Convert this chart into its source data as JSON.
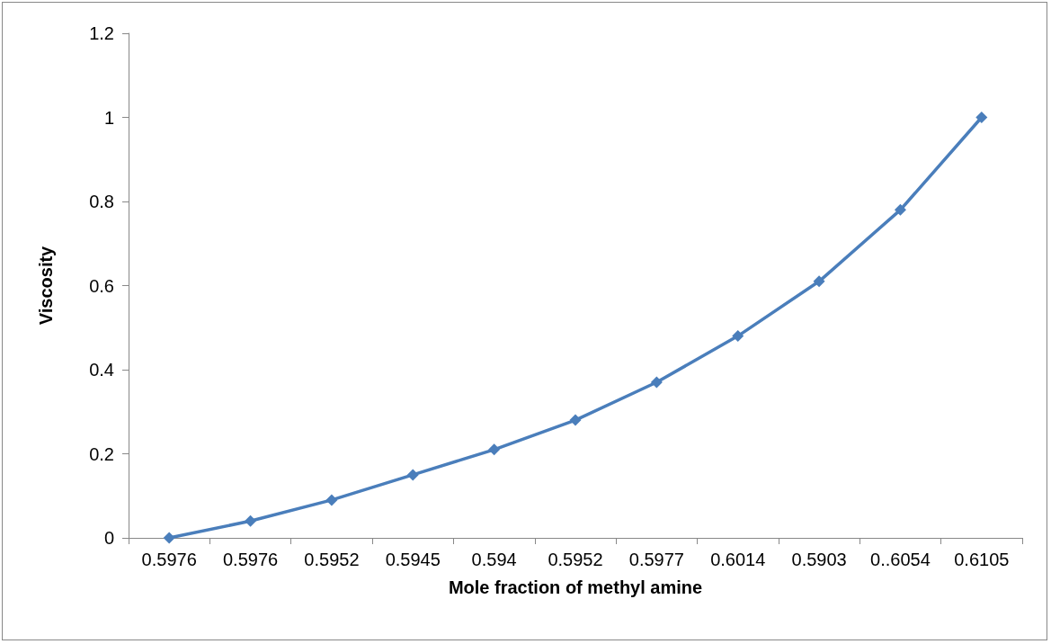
{
  "chart_data": {
    "type": "line",
    "xlabel": "Mole fraction of methyl amine",
    "ylabel": "Viscosity",
    "categories": [
      "0.5976",
      "0.5976",
      "0.5952",
      "0.5945",
      "0.594",
      "0.5952",
      "0.5977",
      "0.6014",
      "0.5903",
      "0..6054",
      "0.6105"
    ],
    "series": [
      {
        "color": "#4a7ebb",
        "values": [
          0,
          0.04,
          0.09,
          0.15,
          0.21,
          0.28,
          0.37,
          0.48,
          0.61,
          0.78,
          1
        ]
      }
    ],
    "ylim": [
      0,
      1.2
    ],
    "yticks": [
      0,
      0.2,
      0.4,
      0.6,
      0.8,
      1,
      1.2
    ],
    "grid": false,
    "marker": "diamond",
    "line_style": "solid"
  }
}
